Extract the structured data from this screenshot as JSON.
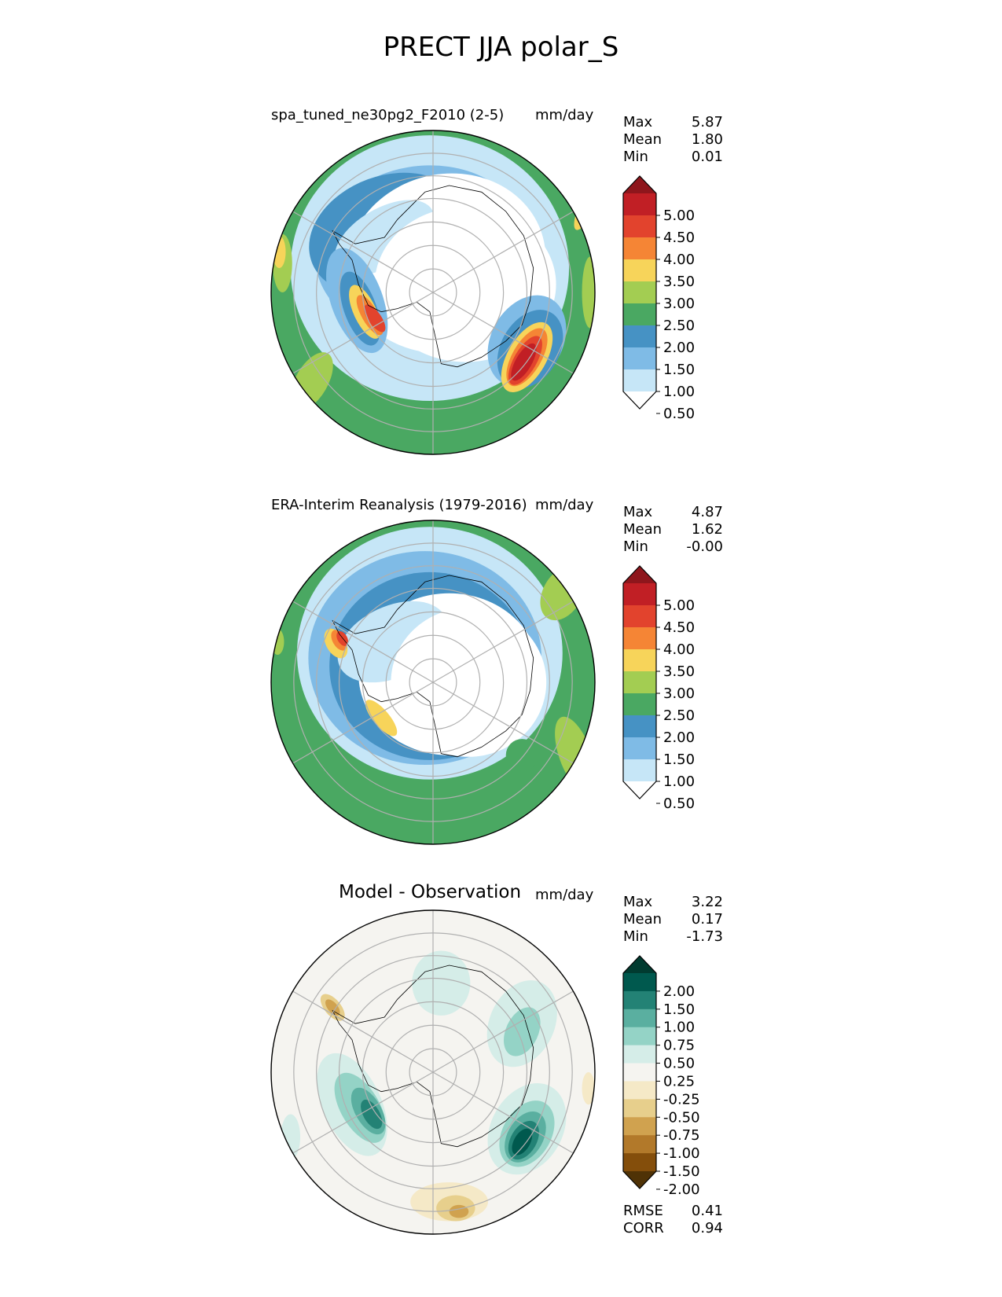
{
  "figure": {
    "title": "PRECT JJA polar_S"
  },
  "panels": [
    {
      "id": "test",
      "title": "spa_tuned_ne30pg2_F2010 (2-5)",
      "units": "mm/day",
      "stats": [
        {
          "label": "Max",
          "value": "5.87"
        },
        {
          "label": "Mean",
          "value": "1.80"
        },
        {
          "label": "Min",
          "value": "0.01"
        }
      ]
    },
    {
      "id": "reference",
      "title": "ERA-Interim Reanalysis (1979-2016)",
      "units": "mm/day",
      "stats": [
        {
          "label": "Max",
          "value": "4.87"
        },
        {
          "label": "Mean",
          "value": "1.62"
        },
        {
          "label": "Min",
          "value": "-0.00"
        }
      ]
    },
    {
      "id": "difference",
      "title": "Model - Observation",
      "units": "mm/day",
      "stats": [
        {
          "label": "Max",
          "value": "3.22"
        },
        {
          "label": "Mean",
          "value": "0.17"
        },
        {
          "label": "Min",
          "value": "-1.73"
        }
      ],
      "extra_stats": [
        {
          "label": "RMSE",
          "value": "0.41"
        },
        {
          "label": "CORR",
          "value": "0.94"
        }
      ]
    }
  ],
  "chart_data": [
    {
      "type": "heatmap",
      "projection": "south polar stereographic",
      "title": "spa_tuned_ne30pg2_F2010 (2-5)",
      "units": "mm/day",
      "colorbar": {
        "levels": [
          0.5,
          1.0,
          1.5,
          2.0,
          2.5,
          3.0,
          3.5,
          4.0,
          4.5,
          5.0
        ],
        "tick_labels": [
          "5.00",
          "4.50",
          "4.00",
          "3.50",
          "3.00",
          "2.50",
          "2.00",
          "1.50",
          "1.00",
          "0.50"
        ],
        "colors": [
          "#ffffff",
          "#c6e6f7",
          "#7fbbe6",
          "#4692c4",
          "#4aa862",
          "#a3cd52",
          "#f7d45a",
          "#f58535",
          "#e2432d",
          "#c11f25",
          "#8e161c"
        ],
        "extend": "both"
      },
      "max": 5.87,
      "mean": 1.8,
      "min": 0.01
    },
    {
      "type": "heatmap",
      "projection": "south polar stereographic",
      "title": "ERA-Interim Reanalysis (1979-2016)",
      "units": "mm/day",
      "colorbar": {
        "levels": [
          0.5,
          1.0,
          1.5,
          2.0,
          2.5,
          3.0,
          3.5,
          4.0,
          4.5,
          5.0
        ],
        "tick_labels": [
          "5.00",
          "4.50",
          "4.00",
          "3.50",
          "3.00",
          "2.50",
          "2.00",
          "1.50",
          "1.00",
          "0.50"
        ],
        "colors": [
          "#ffffff",
          "#c6e6f7",
          "#7fbbe6",
          "#4692c4",
          "#4aa862",
          "#a3cd52",
          "#f7d45a",
          "#f58535",
          "#e2432d",
          "#c11f25",
          "#8e161c"
        ],
        "extend": "both"
      },
      "max": 4.87,
      "mean": 1.62,
      "min": -0.0
    },
    {
      "type": "heatmap",
      "projection": "south polar stereographic",
      "title": "Model - Observation",
      "units": "mm/day",
      "colorbar": {
        "levels": [
          -2.0,
          -1.5,
          -1.0,
          -0.75,
          -0.5,
          -0.25,
          0.25,
          0.5,
          0.75,
          1.0,
          1.5,
          2.0
        ],
        "tick_labels": [
          "2.00",
          "1.50",
          "1.00",
          "0.75",
          "0.50",
          "0.25",
          "-0.25",
          "-0.50",
          "-0.75",
          "-1.00",
          "-1.50",
          "-2.00"
        ],
        "colors": [
          "#4f3206",
          "#844e0b",
          "#b2792a",
          "#d0a24f",
          "#e7cf8c",
          "#f5e9c7",
          "#f5f4f0",
          "#d5ede8",
          "#94d3c6",
          "#5aafa0",
          "#238275",
          "#00594e",
          "#013b30"
        ],
        "extend": "both"
      },
      "max": 3.22,
      "mean": 0.17,
      "min": -1.73,
      "rmse": 0.41,
      "corr": 0.94
    }
  ]
}
